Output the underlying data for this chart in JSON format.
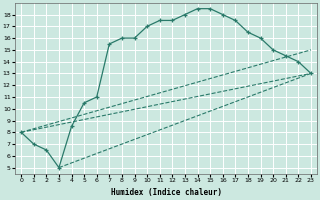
{
  "xlabel": "Humidex (Indice chaleur)",
  "bg_color": "#cce8e0",
  "grid_color": "#ffffff",
  "line_color": "#2a7a6a",
  "xlim": [
    -0.5,
    23.5
  ],
  "ylim": [
    4.5,
    19.0
  ],
  "yticks": [
    5,
    6,
    7,
    8,
    9,
    10,
    11,
    12,
    13,
    14,
    15,
    16,
    17,
    18
  ],
  "xticks": [
    0,
    1,
    2,
    3,
    4,
    5,
    6,
    7,
    8,
    9,
    10,
    11,
    12,
    13,
    14,
    15,
    16,
    17,
    18,
    19,
    20,
    21,
    22,
    23
  ],
  "series_main": {
    "x": [
      0,
      1,
      2,
      3,
      4,
      5,
      6,
      7,
      8,
      9,
      10,
      11,
      12,
      13,
      14,
      15,
      16,
      17,
      18,
      19,
      20,
      21,
      22,
      23
    ],
    "y": [
      8,
      7,
      6.5,
      5,
      8.5,
      10.5,
      11,
      15.5,
      16,
      16,
      17,
      17.5,
      17.5,
      18,
      18.5,
      18.5,
      18,
      17.5,
      16.5,
      16,
      15,
      14.5,
      14,
      13
    ]
  },
  "series_diag1": {
    "x": [
      0,
      23
    ],
    "y": [
      8,
      13
    ]
  },
  "series_diag2": {
    "x": [
      0,
      23
    ],
    "y": [
      8,
      15
    ]
  },
  "series_diag3": {
    "x": [
      3,
      23
    ],
    "y": [
      5,
      13
    ]
  }
}
